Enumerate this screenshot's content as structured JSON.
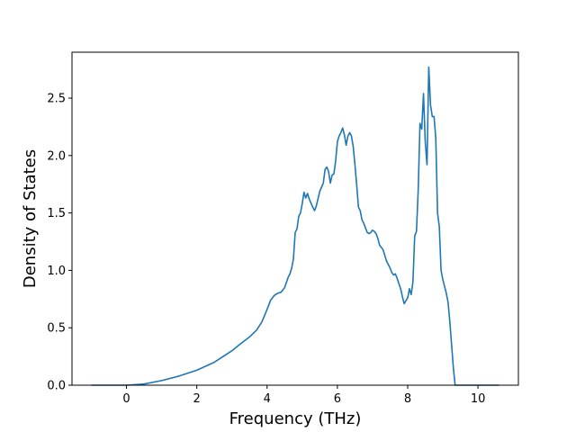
{
  "chart_data": {
    "type": "line",
    "title": "",
    "xlabel": "Frequency (THz)",
    "ylabel": "Density of States",
    "xlim": [
      -1.55,
      11.15
    ],
    "ylim": [
      0.0,
      2.9
    ],
    "xticks": [
      0,
      2,
      4,
      6,
      8,
      10
    ],
    "yticks": [
      0.0,
      0.5,
      1.0,
      1.5,
      2.0,
      2.5
    ],
    "ytick_labels": [
      "0.0",
      "0.5",
      "1.0",
      "1.5",
      "2.0",
      "2.5"
    ],
    "grid": false,
    "line_color": "#1f77b4",
    "series": [
      {
        "x": [
          -1.0,
          -0.5,
          0.0,
          0.5,
          1.0,
          1.5,
          2.0,
          2.5,
          3.0,
          3.2,
          3.5,
          3.7,
          3.85,
          4.0,
          4.1,
          4.2,
          4.3,
          4.4,
          4.5,
          4.6,
          4.65,
          4.7,
          4.75,
          4.8,
          4.85,
          4.9,
          4.95,
          5.0,
          5.05,
          5.1,
          5.15,
          5.2,
          5.3,
          5.35,
          5.4,
          5.5,
          5.6,
          5.65,
          5.7,
          5.75,
          5.8,
          5.85,
          5.9,
          5.95,
          6.0,
          6.05,
          6.1,
          6.15,
          6.2,
          6.25,
          6.3,
          6.35,
          6.4,
          6.45,
          6.5,
          6.55,
          6.6,
          6.65,
          6.7,
          6.75,
          6.8,
          6.85,
          6.9,
          6.95,
          7.0,
          7.05,
          7.1,
          7.15,
          7.2,
          7.3,
          7.4,
          7.5,
          7.55,
          7.6,
          7.65,
          7.7,
          7.8,
          7.85,
          7.9,
          8.0,
          8.05,
          8.1,
          8.15,
          8.2,
          8.25,
          8.3,
          8.35,
          8.4,
          8.45,
          8.5,
          8.55,
          8.6,
          8.65,
          8.7,
          8.75,
          8.8,
          8.85,
          8.9,
          8.95,
          9.0,
          9.05,
          9.1,
          9.15,
          9.2,
          9.25,
          9.3,
          9.35,
          9.4,
          9.5,
          9.55,
          9.6,
          9.65,
          9.7,
          9.75,
          10.0,
          10.6
        ],
        "y": [
          0.0,
          0.0,
          0.0,
          0.01,
          0.04,
          0.08,
          0.13,
          0.2,
          0.3,
          0.35,
          0.42,
          0.48,
          0.55,
          0.66,
          0.74,
          0.78,
          0.8,
          0.81,
          0.85,
          0.94,
          0.97,
          1.02,
          1.1,
          1.33,
          1.36,
          1.47,
          1.5,
          1.58,
          1.68,
          1.63,
          1.67,
          1.62,
          1.55,
          1.52,
          1.56,
          1.69,
          1.76,
          1.88,
          1.9,
          1.86,
          1.76,
          1.83,
          1.84,
          1.95,
          2.12,
          2.17,
          2.2,
          2.24,
          2.18,
          2.09,
          2.17,
          2.2,
          2.17,
          2.08,
          1.92,
          1.74,
          1.55,
          1.52,
          1.44,
          1.41,
          1.37,
          1.33,
          1.32,
          1.33,
          1.35,
          1.34,
          1.32,
          1.28,
          1.22,
          1.18,
          1.08,
          1.02,
          0.98,
          0.96,
          0.97,
          0.93,
          0.84,
          0.77,
          0.71,
          0.76,
          0.84,
          0.79,
          0.9,
          1.3,
          1.34,
          1.7,
          2.28,
          2.23,
          2.54,
          2.12,
          1.92,
          2.77,
          2.44,
          2.34,
          2.34,
          2.15,
          1.5,
          1.38,
          1.0,
          0.92,
          0.86,
          0.8,
          0.72,
          0.55,
          0.35,
          0.15,
          0.0,
          0.0,
          0.0,
          0.0,
          0.0,
          0.0,
          0.0,
          0.0,
          0.0,
          0.0
        ]
      }
    ]
  }
}
